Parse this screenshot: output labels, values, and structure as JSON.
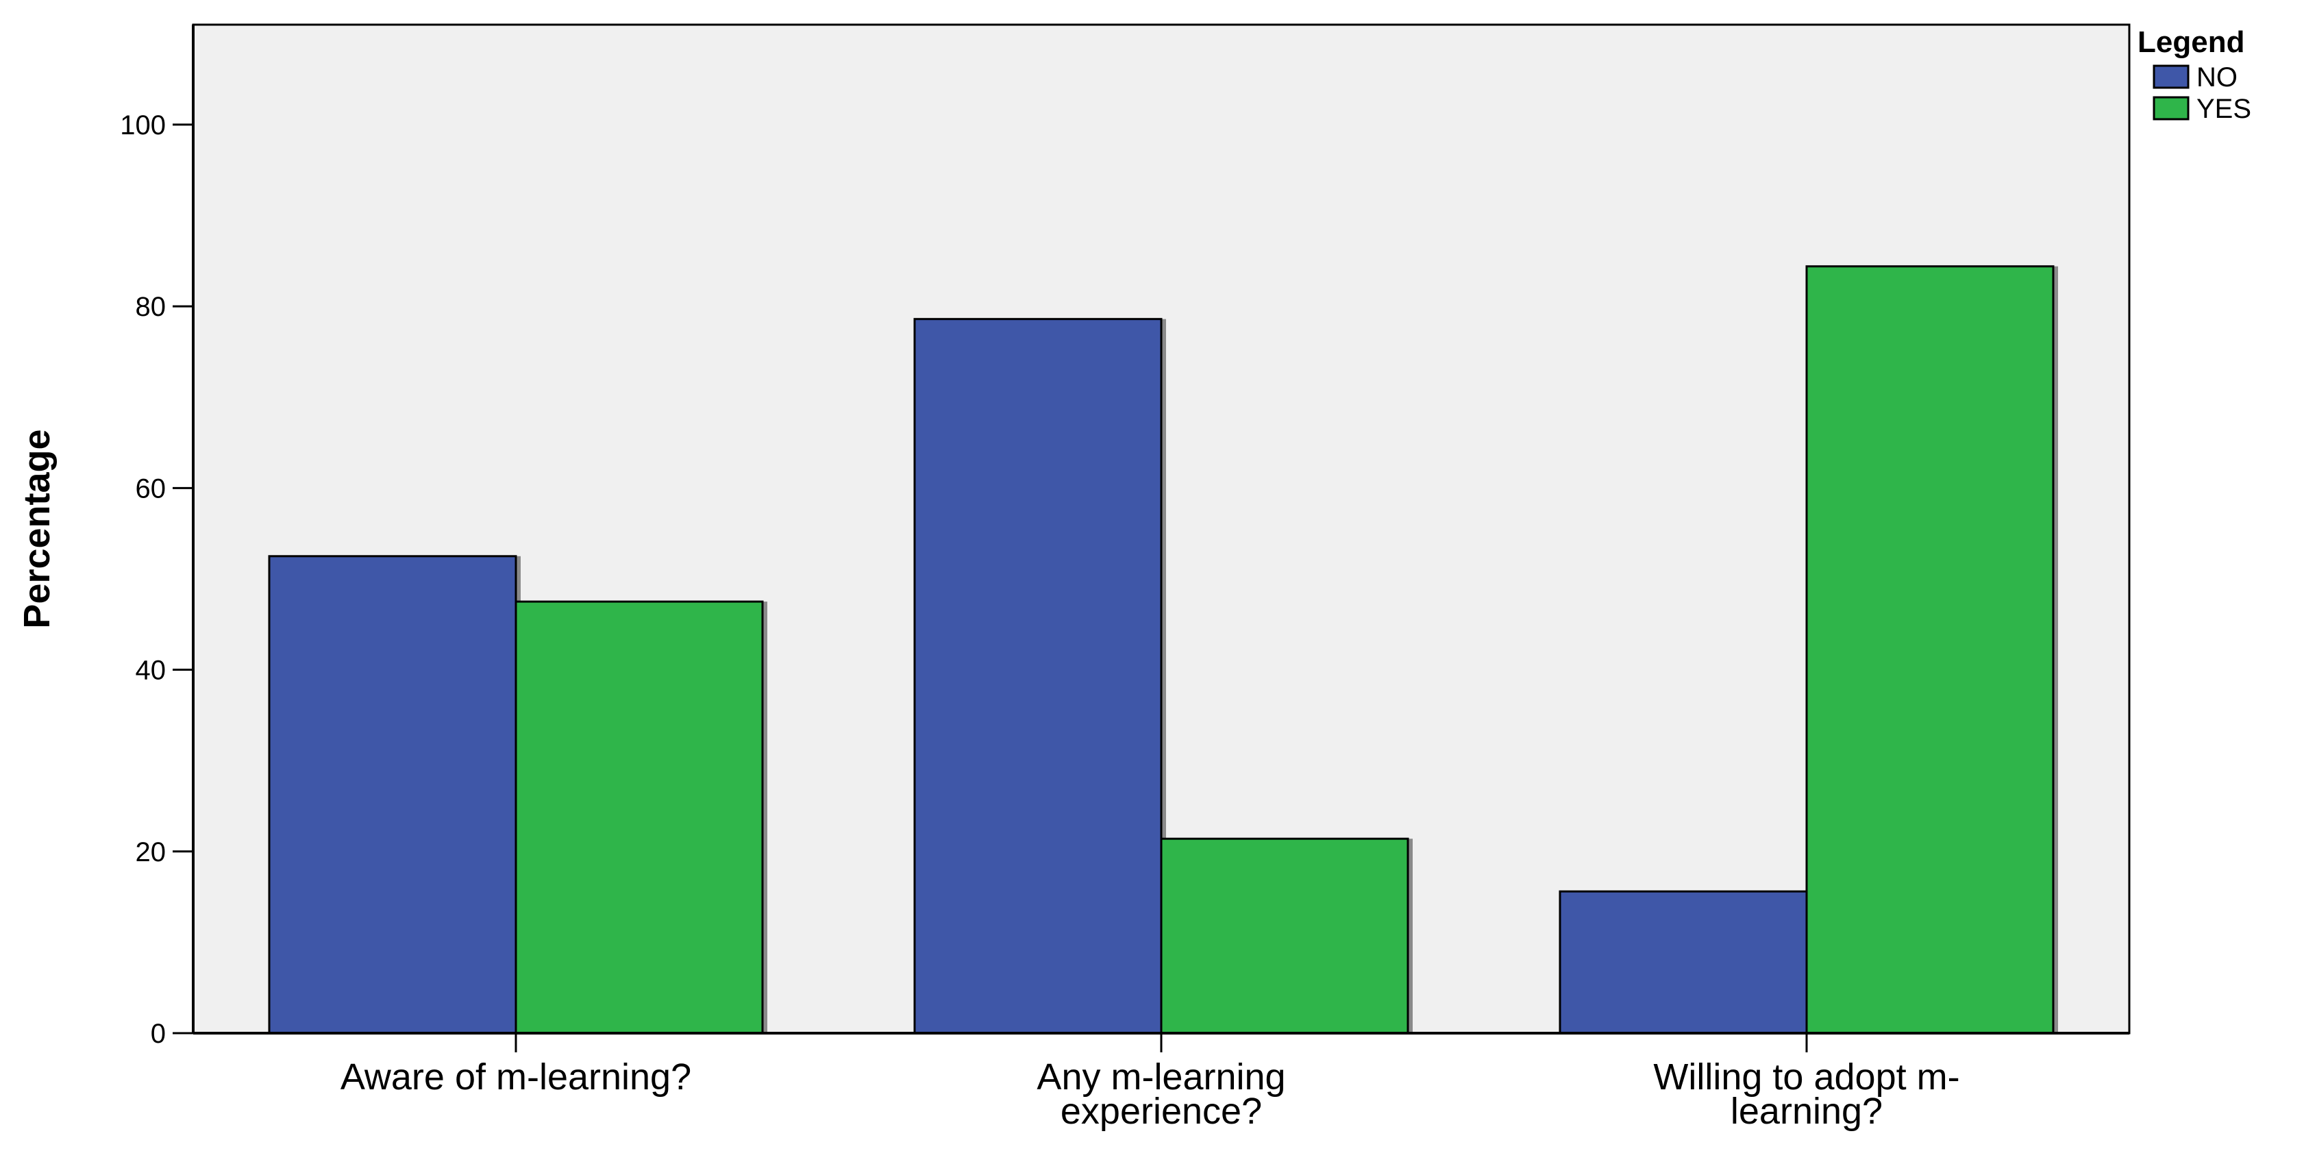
{
  "chart_data": {
    "type": "bar",
    "title": "",
    "xlabel": "",
    "ylabel": "Percentage",
    "ylim": [
      0,
      111
    ],
    "yticks": [
      0,
      20,
      40,
      60,
      80,
      100
    ],
    "grid": false,
    "legend": {
      "title": "Legend",
      "placement": "top-right, outside plot"
    },
    "categories": [
      [
        "Aware of m-learning?"
      ],
      [
        "Any m-learning",
        "experience?"
      ],
      [
        "Willing to adopt m-",
        "learning?"
      ]
    ],
    "series": [
      {
        "name": "NO",
        "color": "#3f57a8",
        "values": [
          52.5,
          78.6,
          15.6
        ]
      },
      {
        "name": "YES",
        "color": "#2fb54a",
        "values": [
          47.5,
          21.4,
          84.4
        ]
      }
    ],
    "plot_background": "#f0f0f0"
  }
}
